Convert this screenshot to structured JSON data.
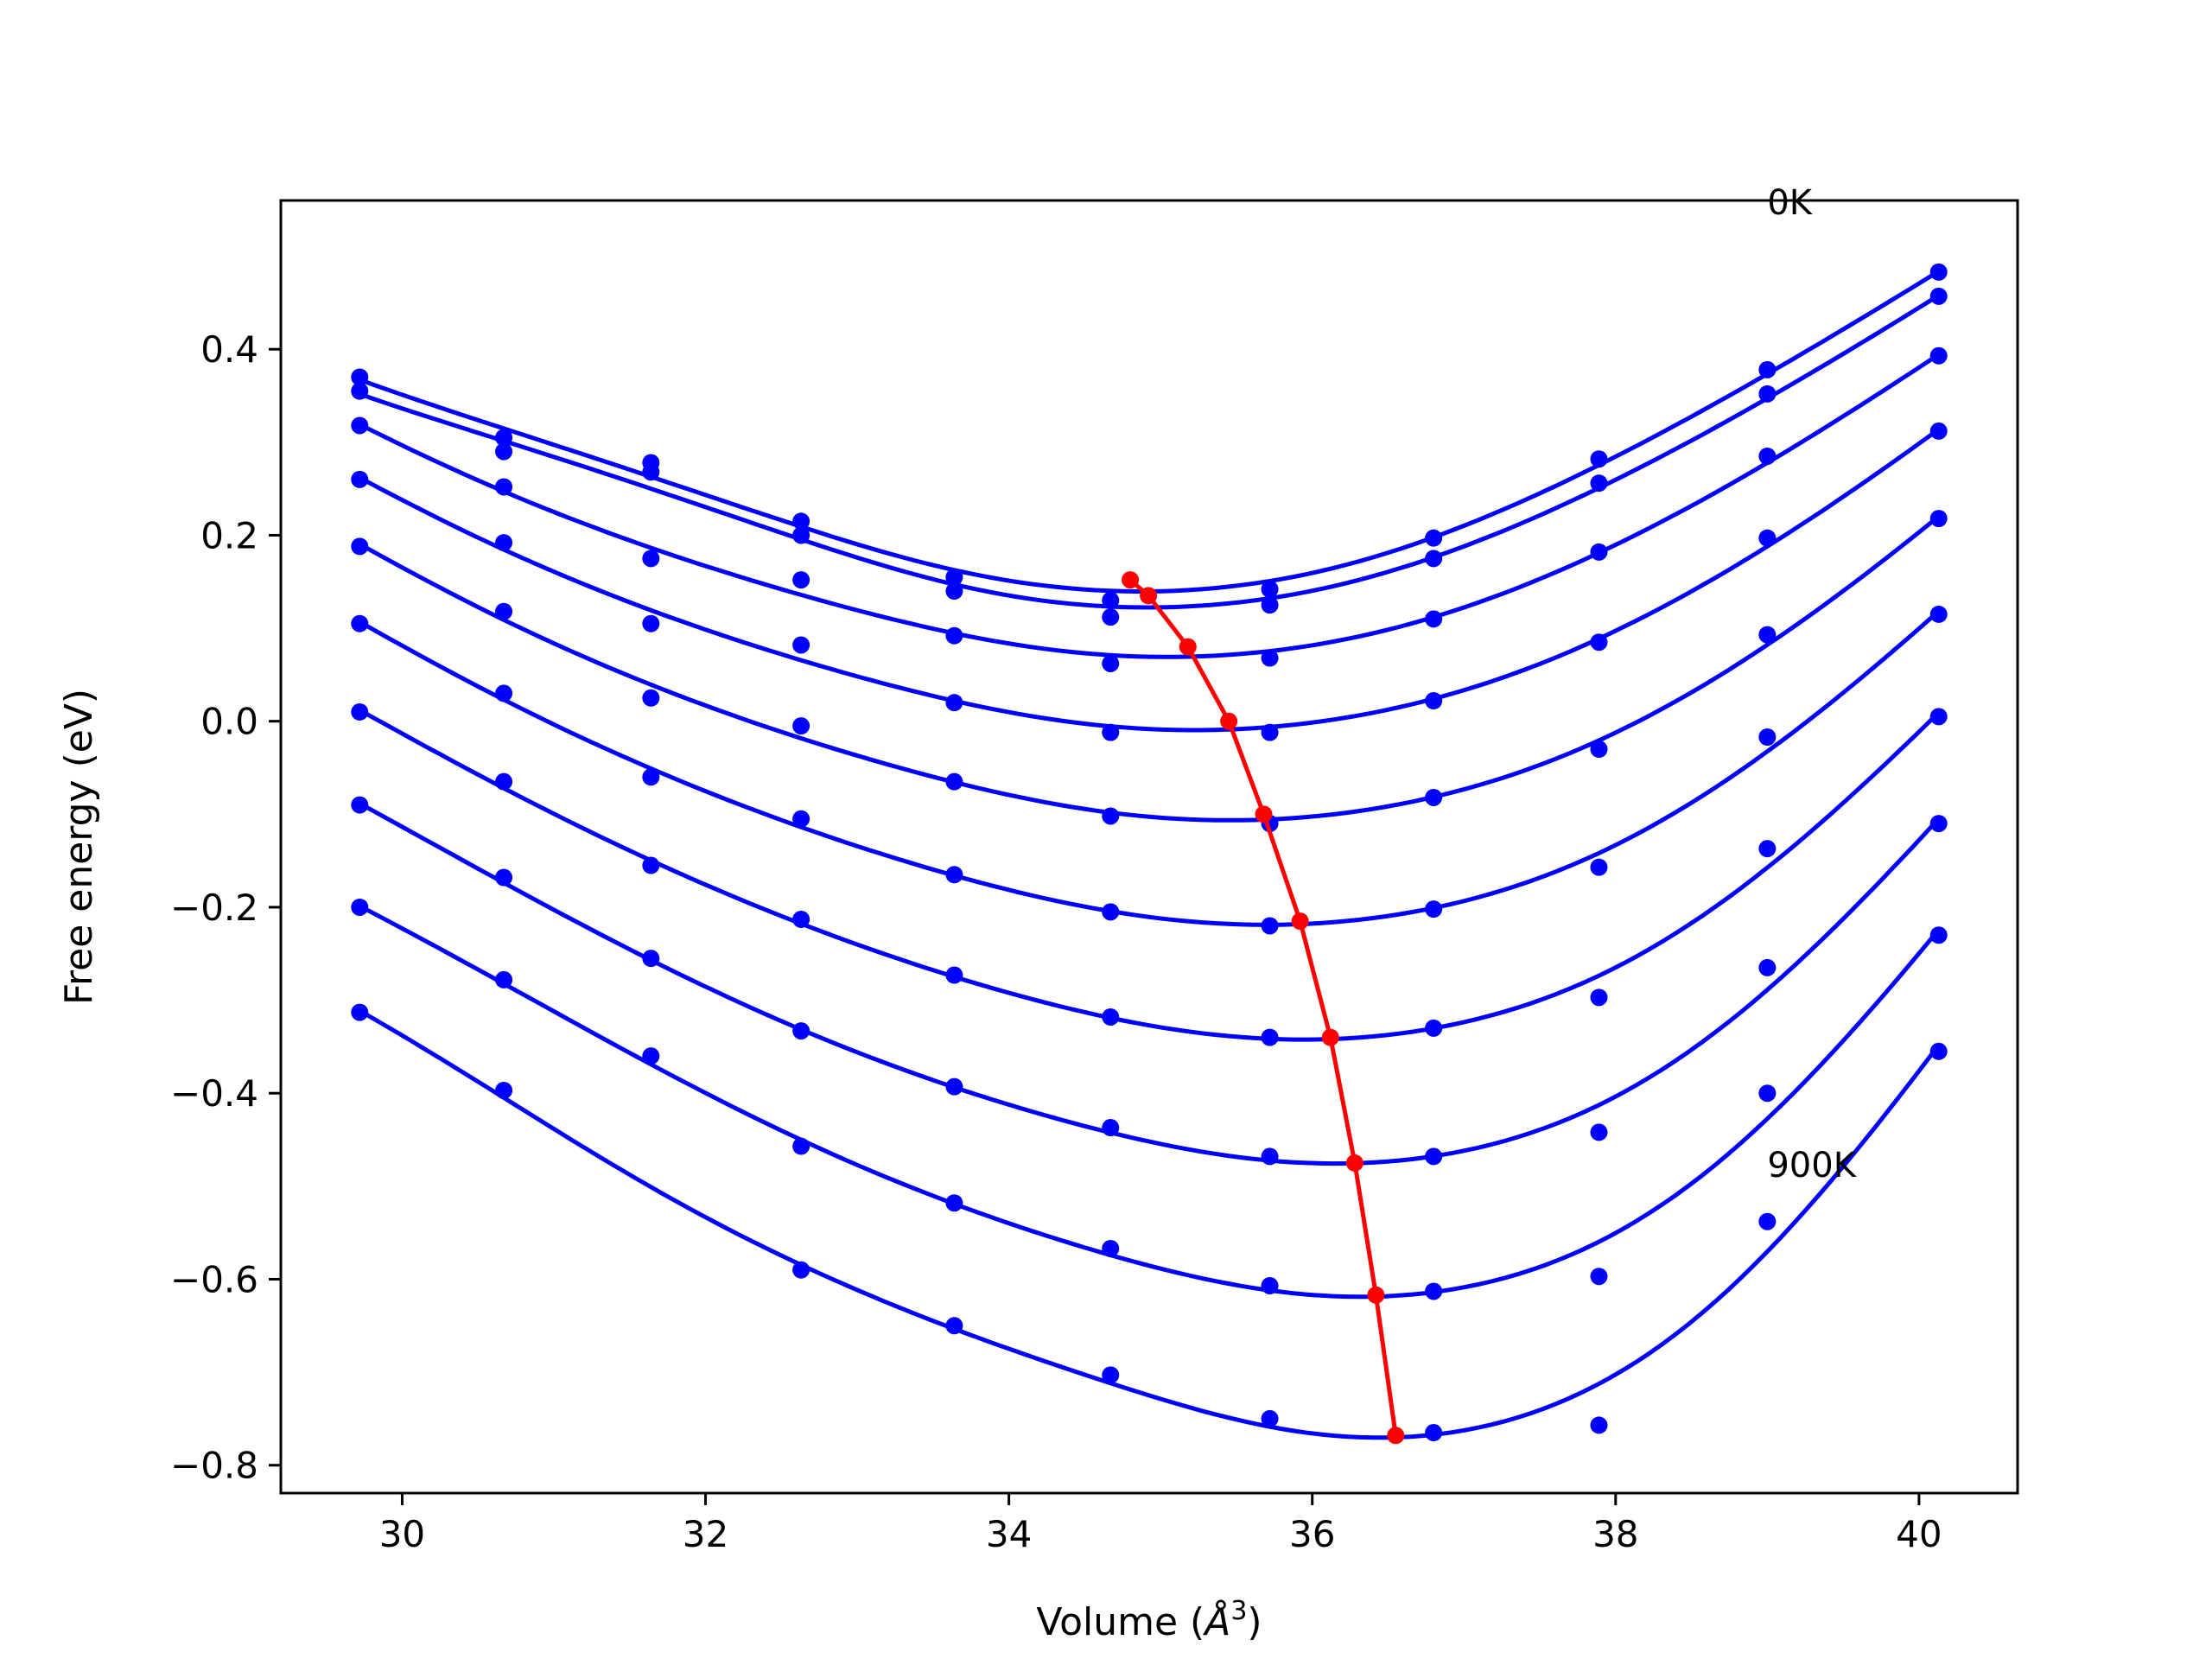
{
  "chart_data": {
    "type": "line",
    "xlabel": "Volume (",
    "xlabel_symbol": "Å",
    "xlabel_exp": "3",
    "xlabel_end": ")",
    "ylabel": "Free energy (eV)",
    "xlim": [
      29.2,
      40.65
    ],
    "ylim": [
      -0.83,
      0.56
    ],
    "xticks": [
      30,
      32,
      34,
      36,
      38,
      40
    ],
    "xtick_labels": [
      "30",
      "32",
      "34",
      "36",
      "38",
      "40"
    ],
    "yticks": [
      0.4,
      0.2,
      0.0,
      -0.2,
      -0.4,
      -0.6,
      -0.8
    ],
    "ytick_labels": [
      "0.4",
      "0.2",
      "0.0",
      "−0.2",
      "−0.4",
      "−0.6",
      "−0.8"
    ],
    "annotations": [
      {
        "text": "0K",
        "x": 39.0,
        "y": 0.545
      },
      {
        "text": "900K",
        "x": 39.0,
        "y": -0.49
      }
    ],
    "colors": {
      "curves": "#0000ff",
      "points": "#0000ff",
      "minima": "#ff0000"
    },
    "volumes": [
      29.72,
      30.67,
      31.64,
      32.63,
      33.64,
      34.67,
      35.72,
      36.8,
      37.89,
      39.0,
      40.13
    ],
    "series": [
      {
        "points": [
          0.37,
          0.305,
          0.278,
          0.215,
          0.155,
          0.13,
          0.142,
          0.197,
          0.282,
          0.378,
          0.483
        ],
        "fit_range": [
          29.72,
          40.13
        ],
        "min": [
          34.8,
          0.152
        ]
      },
      {
        "points": [
          0.355,
          0.29,
          0.268,
          0.2,
          0.14,
          0.112,
          0.125,
          0.175,
          0.256,
          0.352,
          0.457
        ],
        "fit_range": [
          29.72,
          40.13
        ],
        "min": [
          34.92,
          0.135
        ]
      },
      {
        "points": [
          0.318,
          0.252,
          0.175,
          0.152,
          0.092,
          0.062,
          0.068,
          0.11,
          0.182,
          0.285,
          0.393
        ],
        "fit_range": [
          29.72,
          40.13
        ],
        "min": [
          35.18,
          0.08
        ]
      },
      {
        "points": [
          0.26,
          0.192,
          0.105,
          0.082,
          0.02,
          -0.012,
          -0.012,
          0.022,
          0.085,
          0.197,
          0.312
        ],
        "fit_range": [
          29.72,
          40.13
        ],
        "min": [
          35.45,
          0.0
        ]
      },
      {
        "points": [
          0.188,
          0.118,
          0.025,
          -0.005,
          -0.065,
          -0.102,
          -0.11,
          -0.082,
          -0.03,
          0.093,
          0.218
        ],
        "fit_range": [
          29.72,
          40.13
        ],
        "min": [
          35.68,
          -0.1
        ]
      },
      {
        "points": [
          0.105,
          0.03,
          -0.06,
          -0.105,
          -0.165,
          -0.205,
          -0.22,
          -0.202,
          -0.157,
          -0.017,
          0.115
        ],
        "fit_range": [
          29.72,
          40.13
        ],
        "min": [
          35.92,
          -0.215
        ]
      },
      {
        "points": [
          0.01,
          -0.065,
          -0.155,
          -0.213,
          -0.273,
          -0.318,
          -0.34,
          -0.33,
          -0.297,
          -0.137,
          0.005
        ],
        "fit_range": [
          29.72,
          40.13
        ],
        "min": [
          36.12,
          -0.34
        ]
      },
      {
        "points": [
          -0.09,
          -0.168,
          -0.255,
          -0.333,
          -0.393,
          -0.437,
          -0.468,
          -0.468,
          -0.442,
          -0.265,
          -0.11
        ],
        "fit_range": [
          29.72,
          40.13
        ],
        "min": [
          36.28,
          -0.475
        ]
      },
      {
        "points": [
          -0.2,
          -0.278,
          -0.36,
          -0.457,
          -0.518,
          -0.567,
          -0.607,
          -0.613,
          -0.597,
          -0.4,
          -0.23
        ],
        "fit_range": [
          29.72,
          40.13
        ],
        "min": [
          36.42,
          -0.617
        ]
      },
      {
        "points": [
          -0.313,
          -0.397,
          null,
          -0.59,
          -0.65,
          -0.703,
          -0.75,
          -0.765,
          -0.757,
          -0.538,
          -0.355
        ],
        "fit_range": [
          29.72,
          40.13
        ],
        "min": [
          36.55,
          -0.768
        ]
      }
    ]
  }
}
